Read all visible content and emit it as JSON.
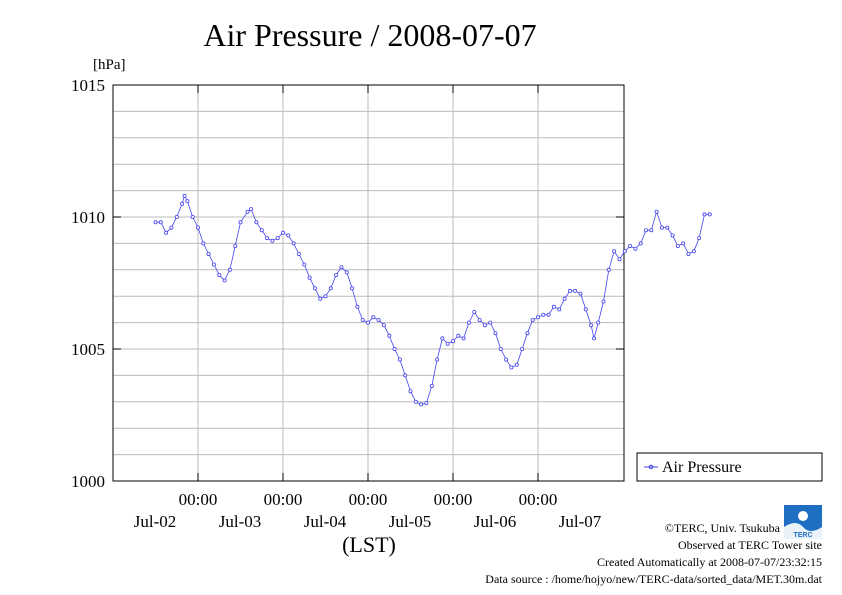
{
  "chart_data": {
    "type": "line",
    "title": "Air Pressure / 2008-07-07",
    "y_unit_label": "[hPa]",
    "xlabel": "(LST)",
    "ylim": [
      1000,
      1015
    ],
    "yticks": [
      1000,
      1005,
      1010,
      1015
    ],
    "x_range_hours": [
      0,
      144
    ],
    "time_tick_labels": [
      "00:00",
      "00:00",
      "00:00",
      "00:00",
      "00:00"
    ],
    "date_labels": [
      "Jul-02",
      "Jul-03",
      "Jul-04",
      "Jul-05",
      "Jul-06",
      "Jul-07"
    ],
    "grid": true,
    "legend": {
      "position": "right",
      "label": "Air Pressure"
    },
    "series": [
      {
        "name": "Air Pressure",
        "color": "#4444ee",
        "x_unit": "hours since Jul-01 12:00",
        "points": [
          [
            0,
            1009.8
          ],
          [
            1.5,
            1009.8
          ],
          [
            3,
            1009.4
          ],
          [
            4.5,
            1009.6
          ],
          [
            6,
            1010.0
          ],
          [
            7.5,
            1010.5
          ],
          [
            8.2,
            1010.8
          ],
          [
            9,
            1010.6
          ],
          [
            10.5,
            1010.0
          ],
          [
            12,
            1009.6
          ],
          [
            13.5,
            1009.0
          ],
          [
            15,
            1008.6
          ],
          [
            16.5,
            1008.2
          ],
          [
            18,
            1007.8
          ],
          [
            19.5,
            1007.6
          ],
          [
            21,
            1008.0
          ],
          [
            22.5,
            1008.9
          ],
          [
            24,
            1009.8
          ],
          [
            26,
            1010.2
          ],
          [
            27,
            1010.3
          ],
          [
            28.5,
            1009.8
          ],
          [
            30,
            1009.5
          ],
          [
            31.5,
            1009.2
          ],
          [
            33,
            1009.1
          ],
          [
            34.5,
            1009.2
          ],
          [
            36,
            1009.4
          ],
          [
            37.5,
            1009.3
          ],
          [
            39,
            1009.0
          ],
          [
            40.5,
            1008.6
          ],
          [
            42,
            1008.2
          ],
          [
            43.5,
            1007.7
          ],
          [
            45,
            1007.3
          ],
          [
            46.5,
            1006.9
          ],
          [
            48,
            1007.0
          ],
          [
            49.5,
            1007.3
          ],
          [
            51,
            1007.8
          ],
          [
            52.5,
            1008.1
          ],
          [
            54,
            1007.9
          ],
          [
            55.5,
            1007.3
          ],
          [
            57,
            1006.6
          ],
          [
            58.5,
            1006.1
          ],
          [
            60,
            1006.0
          ],
          [
            61.5,
            1006.2
          ],
          [
            63,
            1006.1
          ],
          [
            64.5,
            1005.9
          ],
          [
            66,
            1005.5
          ],
          [
            67.5,
            1005.0
          ],
          [
            69,
            1004.6
          ],
          [
            70.5,
            1004.0
          ],
          [
            72,
            1003.4
          ],
          [
            73.5,
            1003.0
          ],
          [
            75,
            1002.9
          ],
          [
            76.5,
            1002.95
          ],
          [
            78,
            1003.6
          ],
          [
            79.5,
            1004.6
          ],
          [
            81,
            1005.4
          ],
          [
            82.5,
            1005.2
          ],
          [
            84,
            1005.3
          ],
          [
            85.5,
            1005.5
          ],
          [
            87,
            1005.4
          ],
          [
            88.5,
            1006.0
          ],
          [
            90,
            1006.4
          ],
          [
            91.5,
            1006.1
          ],
          [
            93,
            1005.9
          ],
          [
            94.5,
            1006.0
          ],
          [
            96,
            1005.6
          ],
          [
            97.5,
            1005.0
          ],
          [
            99,
            1004.6
          ],
          [
            100.5,
            1004.3
          ],
          [
            102,
            1004.4
          ],
          [
            103.5,
            1005.0
          ],
          [
            105,
            1005.6
          ],
          [
            106.5,
            1006.1
          ],
          [
            108,
            1006.2
          ],
          [
            109.5,
            1006.3
          ],
          [
            111,
            1006.3
          ],
          [
            112.5,
            1006.6
          ],
          [
            114,
            1006.5
          ],
          [
            115.5,
            1006.9
          ],
          [
            117,
            1007.2
          ],
          [
            118.5,
            1007.2
          ],
          [
            120,
            1007.1
          ],
          [
            121.5,
            1006.5
          ],
          [
            123,
            1005.9
          ],
          [
            123.8,
            1005.4
          ],
          [
            125,
            1006.0
          ],
          [
            126.5,
            1006.8
          ],
          [
            128,
            1008.0
          ],
          [
            129.5,
            1008.7
          ],
          [
            131,
            1008.4
          ],
          [
            132.5,
            1008.7
          ],
          [
            134,
            1008.9
          ],
          [
            135.5,
            1008.8
          ],
          [
            137,
            1009.0
          ],
          [
            138.5,
            1009.5
          ],
          [
            140,
            1009.5
          ],
          [
            141.5,
            1010.2
          ],
          [
            143,
            1009.6
          ],
          [
            144.5,
            1009.6
          ],
          [
            146,
            1009.3
          ],
          [
            147.5,
            1008.9
          ],
          [
            149,
            1009.0
          ],
          [
            150.5,
            1008.6
          ],
          [
            152,
            1008.7
          ],
          [
            153.5,
            1009.2
          ],
          [
            155,
            1010.1
          ],
          [
            156.5,
            1010.1
          ]
        ]
      }
    ]
  },
  "credits": {
    "copyright": "©TERC, Univ. Tsukuba",
    "observed": "Observed at TERC Tower site",
    "created": "Created Automatically at 2008-07-07/23:32:15",
    "source": "Data source : /home/hojyo/new/TERC-data/sorted_data/MET.30m.dat",
    "logo_text": "TERC"
  }
}
